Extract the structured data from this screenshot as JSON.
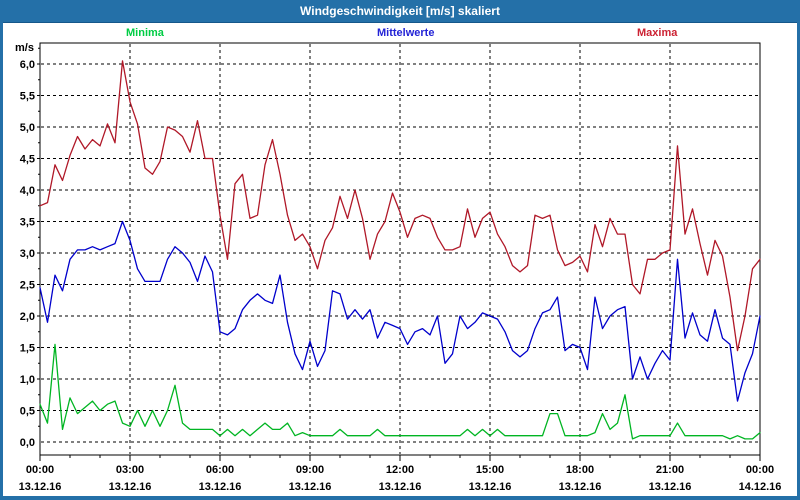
{
  "window": {
    "title": "Windgeschwindigkeit [m/s] skaliert"
  },
  "colors": {
    "frame": "#2470a8",
    "titlebar_bg": "#2470a8",
    "titlebar_fg": "#ffffff",
    "axis": "#000000",
    "grid": "#000000",
    "minima_line": "#00b522",
    "minima_label": "#00cc44",
    "mittelwerte_line": "#0000cc",
    "mittelwerte_label": "#2323d6",
    "maxima_line": "#b01828",
    "maxima_label": "#cc2233"
  },
  "chart_data": {
    "type": "line",
    "title": "Windgeschwindigkeit [m/s] skaliert",
    "ylabel": "m/s",
    "ylim": [
      0,
      6.25
    ],
    "grid": true,
    "legend_position": "top",
    "x_minutes_start": 0,
    "x_minutes_step": 15,
    "x_total_minutes": 1440,
    "yticks": [
      "0,0",
      "0,5",
      "1,0",
      "1,5",
      "2,0",
      "2,5",
      "3,0",
      "3,5",
      "4,0",
      "4,5",
      "5,0",
      "5,5",
      "6,0"
    ],
    "x_ticks": [
      {
        "time": "00:00",
        "date": "13.12.16"
      },
      {
        "time": "03:00",
        "date": "13.12.16"
      },
      {
        "time": "06:00",
        "date": "13.12.16"
      },
      {
        "time": "09:00",
        "date": "13.12.16"
      },
      {
        "time": "12:00",
        "date": "13.12.16"
      },
      {
        "time": "15:00",
        "date": "13.12.16"
      },
      {
        "time": "18:00",
        "date": "13.12.16"
      },
      {
        "time": "21:00",
        "date": "13.12.16"
      },
      {
        "time": "00:00",
        "date": "14.12.16"
      }
    ],
    "series": [
      {
        "name": "Minima",
        "color_key": "minima",
        "values": [
          0.6,
          0.3,
          1.55,
          0.2,
          0.7,
          0.45,
          0.55,
          0.65,
          0.5,
          0.6,
          0.65,
          0.3,
          0.25,
          0.5,
          0.25,
          0.5,
          0.25,
          0.5,
          0.9,
          0.3,
          0.2,
          0.2,
          0.2,
          0.2,
          0.1,
          0.2,
          0.1,
          0.2,
          0.1,
          0.2,
          0.3,
          0.2,
          0.2,
          0.3,
          0.1,
          0.15,
          0.1,
          0.1,
          0.1,
          0.1,
          0.2,
          0.1,
          0.1,
          0.1,
          0.1,
          0.2,
          0.1,
          0.1,
          0.1,
          0.1,
          0.1,
          0.1,
          0.1,
          0.1,
          0.1,
          0.1,
          0.1,
          0.2,
          0.1,
          0.2,
          0.1,
          0.2,
          0.1,
          0.1,
          0.1,
          0.1,
          0.1,
          0.1,
          0.45,
          0.45,
          0.1,
          0.1,
          0.1,
          0.1,
          0.15,
          0.45,
          0.2,
          0.3,
          0.75,
          0.05,
          0.1,
          0.1,
          0.1,
          0.1,
          0.1,
          0.3,
          0.1,
          0.1,
          0.1,
          0.1,
          0.1,
          0.1,
          0.05,
          0.1,
          0.05,
          0.05,
          0.15
        ]
      },
      {
        "name": "Mittelwerte",
        "color_key": "mittelwerte",
        "values": [
          2.45,
          1.9,
          2.65,
          2.4,
          2.9,
          3.05,
          3.05,
          3.1,
          3.05,
          3.1,
          3.15,
          3.5,
          3.2,
          2.75,
          2.55,
          2.55,
          2.55,
          2.9,
          3.1,
          3.0,
          2.85,
          2.55,
          2.95,
          2.7,
          1.75,
          1.7,
          1.8,
          2.1,
          2.25,
          2.35,
          2.25,
          2.2,
          2.65,
          1.9,
          1.4,
          1.15,
          1.6,
          1.2,
          1.45,
          2.4,
          2.35,
          1.95,
          2.1,
          1.95,
          2.1,
          1.65,
          1.9,
          1.85,
          1.8,
          1.55,
          1.75,
          1.8,
          1.7,
          2.0,
          1.25,
          1.4,
          2.0,
          1.8,
          1.9,
          2.05,
          2.0,
          1.95,
          1.75,
          1.45,
          1.35,
          1.45,
          1.8,
          2.05,
          2.1,
          2.3,
          1.45,
          1.55,
          1.5,
          1.15,
          2.3,
          1.8,
          2.0,
          2.1,
          2.15,
          1.0,
          1.35,
          1.0,
          1.25,
          1.45,
          1.3,
          2.9,
          1.65,
          2.05,
          1.7,
          1.6,
          2.1,
          1.65,
          1.55,
          0.65,
          1.1,
          1.4,
          2.0
        ]
      },
      {
        "name": "Maxima",
        "color_key": "maxima",
        "values": [
          3.75,
          3.8,
          4.4,
          4.15,
          4.55,
          4.85,
          4.65,
          4.8,
          4.7,
          5.05,
          4.75,
          6.05,
          5.4,
          5.05,
          4.35,
          4.25,
          4.45,
          5.0,
          4.95,
          4.85,
          4.6,
          5.1,
          4.5,
          4.5,
          3.6,
          2.9,
          4.1,
          4.25,
          3.55,
          3.6,
          4.4,
          4.8,
          4.25,
          3.6,
          3.2,
          3.3,
          3.1,
          2.75,
          3.2,
          3.4,
          3.9,
          3.55,
          4.0,
          3.55,
          2.9,
          3.3,
          3.5,
          3.95,
          3.65,
          3.25,
          3.55,
          3.6,
          3.55,
          3.25,
          3.05,
          3.05,
          3.1,
          3.7,
          3.25,
          3.55,
          3.65,
          3.3,
          3.1,
          2.8,
          2.7,
          2.8,
          3.6,
          3.55,
          3.6,
          3.05,
          2.8,
          2.85,
          2.95,
          2.7,
          3.45,
          3.1,
          3.55,
          3.3,
          3.3,
          2.5,
          2.35,
          2.9,
          2.9,
          3.0,
          3.05,
          4.7,
          3.3,
          3.7,
          3.15,
          2.65,
          3.2,
          2.95,
          2.3,
          1.45,
          2.0,
          2.75,
          2.9
        ]
      }
    ]
  }
}
